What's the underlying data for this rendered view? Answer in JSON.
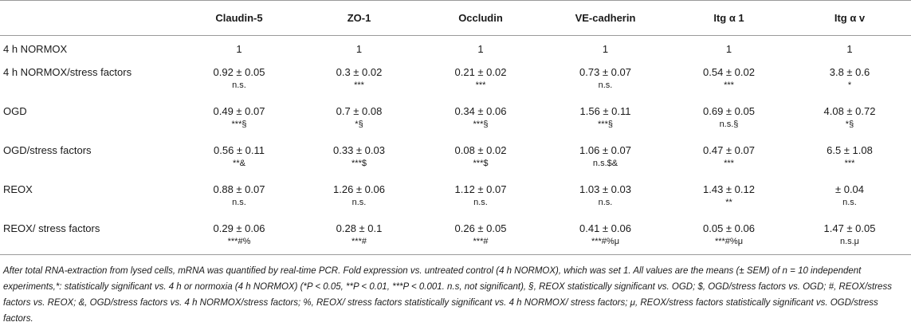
{
  "table": {
    "header": {
      "row_label": "",
      "columns": [
        "Claudin-5",
        "ZO-1",
        "Occludin",
        "VE-cadherin",
        "Itg α 1",
        "Itg α v"
      ]
    },
    "rows": [
      {
        "label": "4 h NORMOX",
        "cells": [
          {
            "value": "1",
            "sig": ""
          },
          {
            "value": "1",
            "sig": ""
          },
          {
            "value": "1",
            "sig": ""
          },
          {
            "value": "1",
            "sig": ""
          },
          {
            "value": "1",
            "sig": ""
          },
          {
            "value": "1",
            "sig": ""
          }
        ]
      },
      {
        "label": "4 h NORMOX/stress factors",
        "cells": [
          {
            "value": "0.92 ± 0.05",
            "sig": "n.s."
          },
          {
            "value": "0.3 ± 0.02",
            "sig": "***"
          },
          {
            "value": "0.21 ± 0.02",
            "sig": "***"
          },
          {
            "value": "0.73 ± 0.07",
            "sig": "n.s."
          },
          {
            "value": "0.54 ± 0.02",
            "sig": "***"
          },
          {
            "value": "3.8 ± 0.6",
            "sig": "*"
          }
        ]
      },
      {
        "label": "OGD",
        "cells": [
          {
            "value": "0.49 ± 0.07",
            "sig": "***§"
          },
          {
            "value": "0.7 ± 0.08",
            "sig": "*§"
          },
          {
            "value": "0.34 ± 0.06",
            "sig": "***§"
          },
          {
            "value": "1.56 ± 0.11",
            "sig": "***§"
          },
          {
            "value": "0.69 ± 0.05",
            "sig": "n.s.§"
          },
          {
            "value": "4.08 ± 0.72",
            "sig": "*§"
          }
        ]
      },
      {
        "label": "OGD/stress factors",
        "cells": [
          {
            "value": "0.56 ± 0.11",
            "sig": "**&"
          },
          {
            "value": "0.33 ± 0.03",
            "sig": "***$"
          },
          {
            "value": "0.08 ± 0.02",
            "sig": "***$"
          },
          {
            "value": "1.06 ± 0.07",
            "sig": "n.s.$&"
          },
          {
            "value": "0.47 ± 0.07",
            "sig": "***"
          },
          {
            "value": "6.5 ± 1.08",
            "sig": "***"
          }
        ]
      },
      {
        "label": "REOX",
        "cells": [
          {
            "value": "0.88 ± 0.07",
            "sig": "n.s."
          },
          {
            "value": "1.26 ± 0.06",
            "sig": "n.s."
          },
          {
            "value": "1.12 ± 0.07",
            "sig": "n.s."
          },
          {
            "value": "1.03 ± 0.03",
            "sig": "n.s."
          },
          {
            "value": "1.43 ± 0.12",
            "sig": "**"
          },
          {
            "value": "± 0.04",
            "sig": "n.s."
          }
        ]
      },
      {
        "label": "REOX/ stress factors",
        "cells": [
          {
            "value": "0.29 ± 0.06",
            "sig": "***#%"
          },
          {
            "value": "0.28 ± 0.1",
            "sig": "***#"
          },
          {
            "value": "0.26 ± 0.05",
            "sig": "***#"
          },
          {
            "value": "0.41 ± 0.06",
            "sig": "***#%μ"
          },
          {
            "value": "0.05 ± 0.06",
            "sig": "***#%μ"
          },
          {
            "value": "1.47 ± 0.05",
            "sig": "n.s.μ"
          }
        ]
      }
    ]
  },
  "footnote": "After total RNA-extraction from lysed cells, mRNA was quantified by real-time PCR. Fold expression vs. untreated control (4 h NORMOX), which was set 1. All values are the means (± SEM) of n = 10 independent experiments,*: statistically significant vs. 4 h or normoxia (4 h NORMOX) (*P < 0.05, **P < 0.01, ***P < 0.001. n.s, not significant), §, REOX statistically significant vs. OGD; $, OGD/stress factors vs. OGD; #, REOX/stress factors vs. REOX; &, OGD/stress factors vs. 4 h NORMOX/stress factors; %, REOX/ stress factors statistically significant vs. 4 h NORMOX/ stress factors; μ, REOX/stress factors statistically significant vs. OGD/stress factors."
}
